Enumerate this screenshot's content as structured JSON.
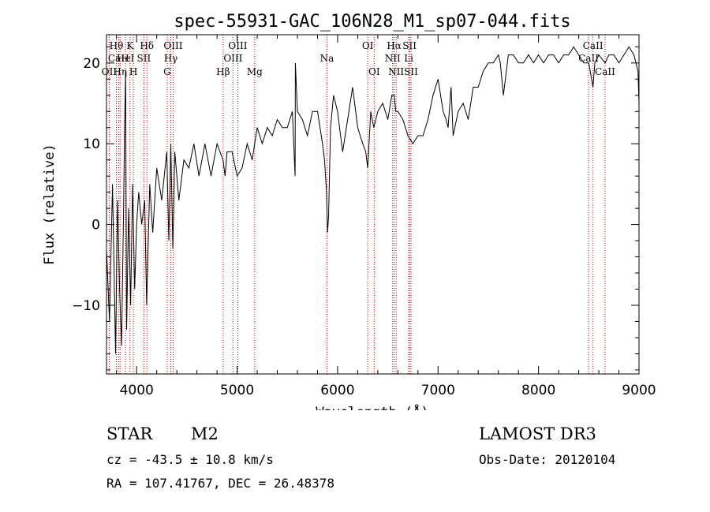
{
  "chart_data": {
    "type": "line",
    "title": "spec-55931-GAC_106N28_M1_sp07-044.fits",
    "xlabel": "Wavelength (Å)",
    "ylabel": "Flux (relative)",
    "xlim": [
      3700,
      9000
    ],
    "ylim": [
      -18.5,
      23.5
    ],
    "xticks": [
      4000,
      5000,
      6000,
      7000,
      8000,
      9000
    ],
    "yticks": [
      -10,
      0,
      10,
      20
    ],
    "grid": false,
    "series": [
      {
        "name": "spectrum",
        "x": [
          3700,
          3730,
          3760,
          3790,
          3810,
          3830,
          3850,
          3870,
          3880,
          3890,
          3900,
          3920,
          3940,
          3960,
          3980,
          4000,
          4020,
          4050,
          4080,
          4100,
          4130,
          4160,
          4200,
          4250,
          4300,
          4320,
          4340,
          4360,
          4380,
          4420,
          4470,
          4520,
          4570,
          4620,
          4680,
          4740,
          4800,
          4860,
          4880,
          4900,
          4950,
          5000,
          5050,
          5100,
          5150,
          5200,
          5250,
          5300,
          5350,
          5400,
          5450,
          5500,
          5550,
          5577,
          5580,
          5600,
          5650,
          5700,
          5750,
          5800,
          5850,
          5870,
          5890,
          5900,
          5910,
          5930,
          5960,
          6000,
          6050,
          6100,
          6150,
          6200,
          6250,
          6280,
          6300,
          6330,
          6360,
          6400,
          6450,
          6500,
          6540,
          6563,
          6580,
          6600,
          6650,
          6700,
          6750,
          6800,
          6850,
          6900,
          6950,
          7000,
          7050,
          7080,
          7100,
          7130,
          7150,
          7200,
          7250,
          7300,
          7350,
          7400,
          7450,
          7500,
          7550,
          7600,
          7620,
          7650,
          7700,
          7750,
          7800,
          7850,
          7900,
          7950,
          8000,
          8050,
          8100,
          8150,
          8200,
          8250,
          8300,
          8350,
          8400,
          8450,
          8500,
          8542,
          8560,
          8600,
          8662,
          8700,
          8750,
          8800,
          8850,
          8900,
          8950,
          8990,
          9000
        ],
        "values": [
          -3,
          -12,
          5,
          -16,
          3,
          -8,
          -15,
          2,
          12,
          19,
          -13,
          2,
          -10,
          5,
          -8,
          0,
          4,
          0,
          3,
          -10,
          5,
          -1,
          7,
          3,
          9,
          -2,
          10,
          -3,
          9,
          3,
          8,
          7,
          10,
          6,
          10,
          6,
          10,
          8,
          6,
          9,
          9,
          6,
          7,
          10,
          8,
          12,
          10,
          12,
          11,
          13,
          12,
          12,
          14,
          6,
          20,
          14,
          13,
          11,
          14,
          14,
          10,
          8,
          4,
          -1,
          1,
          12,
          16,
          14,
          9,
          13,
          17,
          12,
          10,
          9,
          7,
          14,
          12,
          14,
          15,
          13,
          16,
          16,
          14,
          14,
          13,
          11,
          10,
          11,
          11,
          13,
          16,
          18,
          14,
          13,
          12,
          17,
          11,
          14,
          15,
          13,
          17,
          17,
          19,
          20,
          20,
          21,
          20,
          16,
          21,
          21,
          20,
          20,
          21,
          20,
          21,
          20,
          21,
          21,
          20,
          21,
          21,
          22,
          21,
          20,
          20,
          17,
          20,
          21,
          20,
          21,
          21,
          20,
          21,
          22,
          21,
          19,
          15
        ]
      }
    ],
    "line_markers": [
      {
        "wave": 3727,
        "label": "OII",
        "row": 2
      },
      {
        "wave": 3798,
        "label": "Hθ",
        "row": 0
      },
      {
        "wave": 3820,
        "label": "CaH",
        "row": 1
      },
      {
        "wave": 3835,
        "label": "Hη",
        "row": 2
      },
      {
        "wave": 3889,
        "label": "HeI",
        "row": 1
      },
      {
        "wave": 3934,
        "label": "K",
        "row": 0
      },
      {
        "wave": 3968,
        "label": "H",
        "row": 2
      },
      {
        "wave": 4072,
        "label": "SII",
        "row": 1
      },
      {
        "wave": 4102,
        "label": "Hδ",
        "row": 0
      },
      {
        "wave": 4304,
        "label": "G",
        "row": 2
      },
      {
        "wave": 4340,
        "label": "Hγ",
        "row": 1
      },
      {
        "wave": 4363,
        "label": "OIII",
        "row": 0
      },
      {
        "wave": 4861,
        "label": "Hβ",
        "row": 2
      },
      {
        "wave": 4959,
        "label": "OIII",
        "row": 1
      },
      {
        "wave": 5007,
        "label": "OIII",
        "row": 0
      },
      {
        "wave": 5175,
        "label": "Mg",
        "row": 2
      },
      {
        "wave": 5894,
        "label": "Na",
        "row": 1
      },
      {
        "wave": 6300,
        "label": "OI",
        "row": 0
      },
      {
        "wave": 6364,
        "label": "OI",
        "row": 2
      },
      {
        "wave": 6548,
        "label": "NII",
        "row": 1
      },
      {
        "wave": 6563,
        "label": "Hα",
        "row": 0
      },
      {
        "wave": 6583,
        "label": "NII",
        "row": 2
      },
      {
        "wave": 6708,
        "label": "Li",
        "row": 1
      },
      {
        "wave": 6716,
        "label": "SII",
        "row": 0
      },
      {
        "wave": 6731,
        "label": "SII",
        "row": 2
      },
      {
        "wave": 8498,
        "label": "CaII",
        "row": 1
      },
      {
        "wave": 8542,
        "label": "CaII",
        "row": 0
      },
      {
        "wave": 8662,
        "label": "CaII",
        "row": 2
      }
    ]
  },
  "info": {
    "object_class": "STAR",
    "subclass": "M2",
    "survey": "LAMOST DR3",
    "redshift": "cz = -43.5 ± 10.8 km/s",
    "obs_date": "Obs-Date: 20120104",
    "coords": "RA = 107.41767, DEC =  26.48378"
  },
  "colors": {
    "line_marker": "#c00000",
    "spectrum": "#000000"
  }
}
